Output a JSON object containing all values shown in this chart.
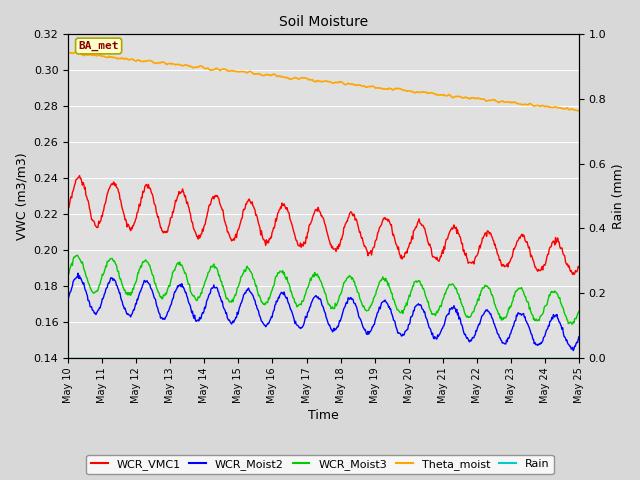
{
  "title": "Soil Moisture",
  "xlabel": "Time",
  "ylabel_left": "VWC (m3/m3)",
  "ylabel_right": "Rain (mm)",
  "ylim_left": [
    0.14,
    0.32
  ],
  "ylim_right": [
    0.0,
    1.0
  ],
  "xlim": [
    0,
    15
  ],
  "x_tick_labels": [
    "May 10",
    "May 11",
    "May 12",
    "May 13",
    "May 14",
    "May 15",
    "May 16",
    "May 17",
    "May 18",
    "May 19",
    "May 20",
    "May 21",
    "May 22",
    "May 23",
    "May 24",
    "May 25"
  ],
  "yticks_left": [
    0.14,
    0.16,
    0.18,
    0.2,
    0.22,
    0.24,
    0.26,
    0.28,
    0.3,
    0.32
  ],
  "yticks_right": [
    0.0,
    0.2,
    0.4,
    0.6,
    0.8,
    1.0
  ],
  "legend_labels": [
    "WCR_VMC1",
    "WCR_Moist2",
    "WCR_Moist3",
    "Theta_moist",
    "Rain"
  ],
  "legend_colors": [
    "#ff0000",
    "#0000ff",
    "#00cc00",
    "#ffa500",
    "#00cccc"
  ],
  "line_widths": [
    1.0,
    1.0,
    1.0,
    1.2,
    1.0
  ],
  "annotation_text": "BA_met",
  "annotation_bg": "#ffffcc",
  "annotation_border": "#aaa800",
  "annotation_text_color": "#880000",
  "fig_bg_color": "#d8d8d8",
  "plot_bg_color": "#e0e0e0",
  "n_points": 720,
  "osc_freq": 1.0
}
